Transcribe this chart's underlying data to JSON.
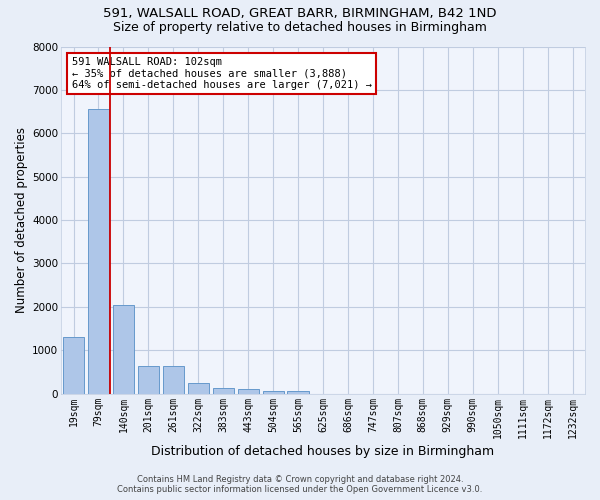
{
  "title1": "591, WALSALL ROAD, GREAT BARR, BIRMINGHAM, B42 1ND",
  "title2": "Size of property relative to detached houses in Birmingham",
  "xlabel": "Distribution of detached houses by size in Birmingham",
  "ylabel": "Number of detached properties",
  "categories": [
    "19sqm",
    "79sqm",
    "140sqm",
    "201sqm",
    "261sqm",
    "322sqm",
    "383sqm",
    "443sqm",
    "504sqm",
    "565sqm",
    "625sqm",
    "686sqm",
    "747sqm",
    "807sqm",
    "868sqm",
    "929sqm",
    "990sqm",
    "1050sqm",
    "1111sqm",
    "1172sqm",
    "1232sqm"
  ],
  "values": [
    1300,
    6550,
    2050,
    640,
    640,
    255,
    130,
    100,
    65,
    65,
    0,
    0,
    0,
    0,
    0,
    0,
    0,
    0,
    0,
    0,
    0
  ],
  "bar_color": "#aec6e8",
  "bar_edge_color": "#6699cc",
  "vline_color": "#cc0000",
  "annotation_line1": "591 WALSALL ROAD: 102sqm",
  "annotation_line2": "← 35% of detached houses are smaller (3,888)",
  "annotation_line3": "64% of semi-detached houses are larger (7,021) →",
  "annotation_box_color": "white",
  "annotation_box_edge_color": "#cc0000",
  "ylim": [
    0,
    8000
  ],
  "yticks": [
    0,
    1000,
    2000,
    3000,
    4000,
    5000,
    6000,
    7000,
    8000
  ],
  "footer1": "Contains HM Land Registry data © Crown copyright and database right 2024.",
  "footer2": "Contains public sector information licensed under the Open Government Licence v3.0.",
  "bg_color": "#e8eef8",
  "plot_bg_color": "#f0f4fc",
  "grid_color": "#c0cce0",
  "title1_fontsize": 9.5,
  "title2_fontsize": 9,
  "axis_label_fontsize": 8.5,
  "tick_fontsize": 7,
  "annotation_fontsize": 7.5,
  "footer_fontsize": 6
}
